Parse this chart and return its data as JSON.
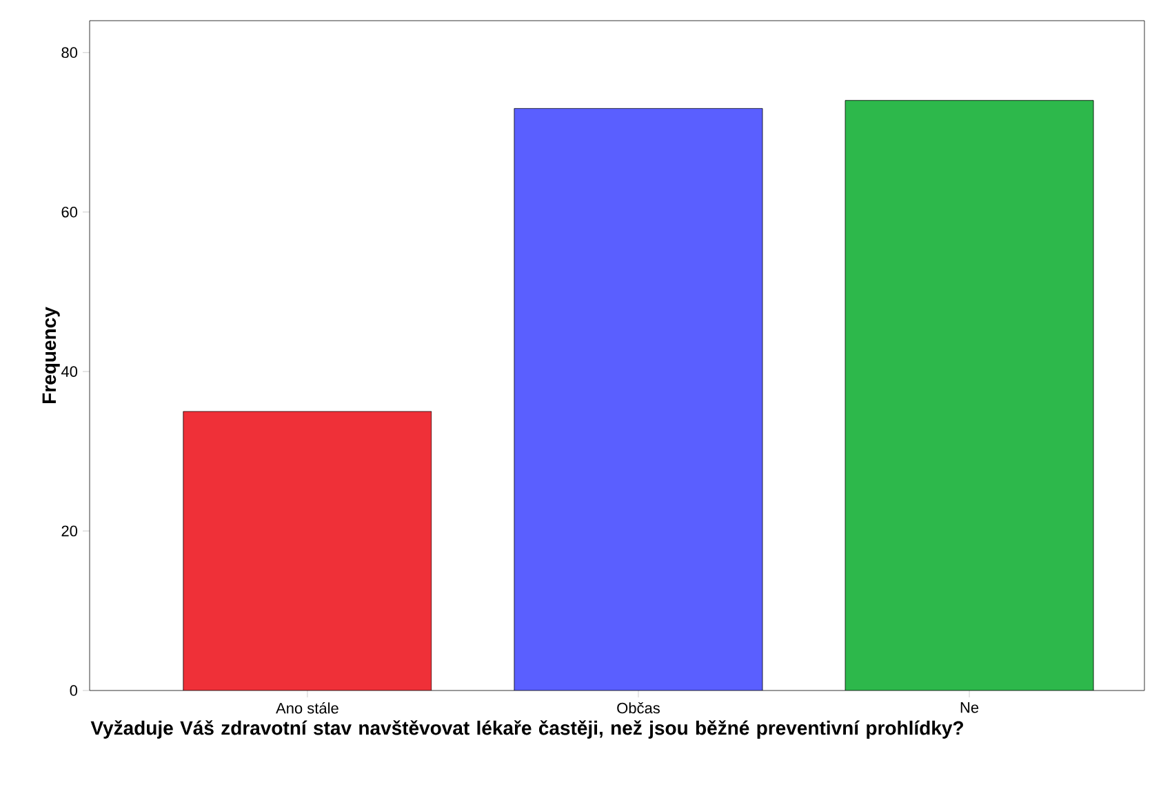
{
  "chart_data": {
    "type": "bar",
    "xlabel": "Vyžaduje Váš zdravotní stav navštěvovat lékaře častěji, než jsou běžné preventivní prohlídky?",
    "ylabel": "Frequency",
    "categories": [
      "Ano stále",
      "Občas",
      "Ne"
    ],
    "values": [
      35,
      73,
      74
    ],
    "colors": [
      "#ef3038",
      "#5a5fff",
      "#2db84b"
    ],
    "ylim": [
      0,
      84
    ],
    "yticks": [
      0,
      20,
      40,
      60,
      80
    ],
    "grid": false
  }
}
